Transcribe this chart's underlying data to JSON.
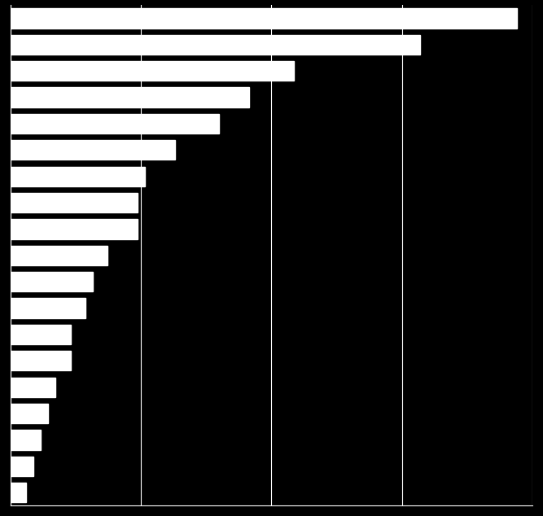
{
  "values": [
    68,
    55,
    38,
    32,
    28,
    22,
    18,
    17,
    17,
    13,
    11,
    10,
    8,
    8,
    6,
    5,
    4,
    3,
    2
  ],
  "bar_color": "#ffffff",
  "background_color": "#000000",
  "grid_color": "#ffffff",
  "xlim": [
    0,
    70
  ],
  "xticks": [
    0,
    17.5,
    35,
    52.5,
    70
  ],
  "figsize": [
    6.67,
    6.34
  ],
  "bar_height": 0.75,
  "linewidth": 0.8,
  "dpi": 100
}
